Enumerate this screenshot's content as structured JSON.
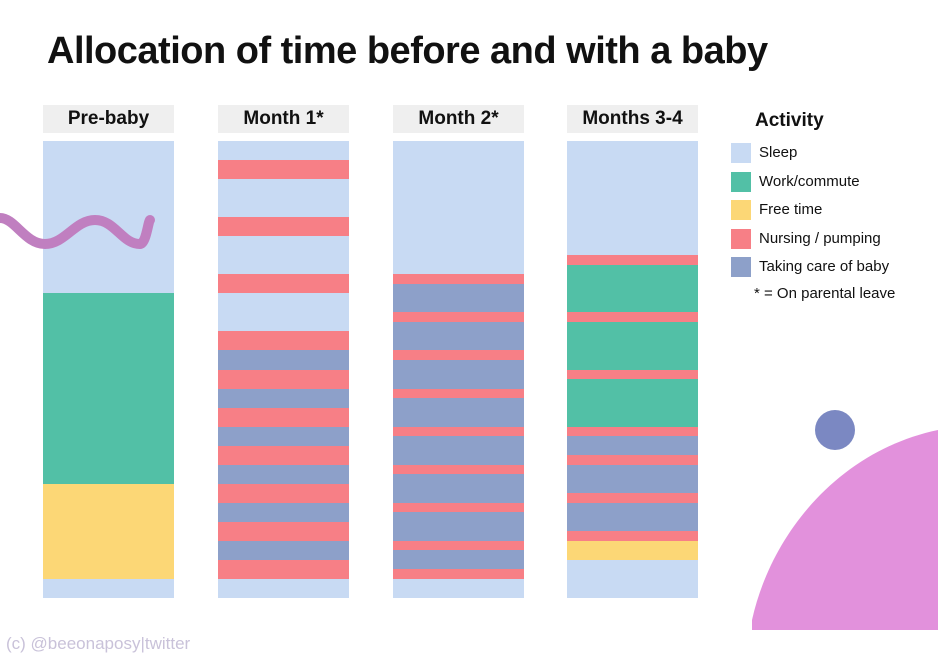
{
  "title": "Allocation of time before and with a baby",
  "credit": "(c) @beeonaposy|twitter",
  "colors": {
    "sleep": "#c8daf3",
    "work": "#52c0a6",
    "free": "#fcd776",
    "nursing": "#f77f86",
    "baby": "#8da0c9",
    "decor_wave": "#c07fc0",
    "decor_dot": "#7b88c2",
    "decor_blob": "#e291dc"
  },
  "chart_data": {
    "type": "bar",
    "stacked": true,
    "unit": "hours",
    "range": [
      0,
      24
    ],
    "categories": [
      "Pre-baby",
      "Month 1*",
      "Month 2*",
      "Months 3-4"
    ],
    "legend": {
      "title": "Activity",
      "placement": "right",
      "items": [
        {
          "key": "sleep",
          "label": "Sleep"
        },
        {
          "key": "work",
          "label": "Work/commute"
        },
        {
          "key": "free",
          "label": "Free time"
        },
        {
          "key": "nursing",
          "label": "Nursing / pumping"
        },
        {
          "key": "baby",
          "label": "Taking care of baby"
        }
      ],
      "note": "* = On parental leave"
    },
    "columns": [
      {
        "name": "Pre-baby",
        "segments": [
          {
            "activity": "sleep",
            "hours": 8
          },
          {
            "activity": "work",
            "hours": 10
          },
          {
            "activity": "free",
            "hours": 5
          },
          {
            "activity": "sleep",
            "hours": 1
          }
        ]
      },
      {
        "name": "Month 1*",
        "segments": [
          {
            "activity": "sleep",
            "hours": 1
          },
          {
            "activity": "nursing",
            "hours": 1
          },
          {
            "activity": "sleep",
            "hours": 2
          },
          {
            "activity": "nursing",
            "hours": 1
          },
          {
            "activity": "sleep",
            "hours": 2
          },
          {
            "activity": "nursing",
            "hours": 1
          },
          {
            "activity": "sleep",
            "hours": 2
          },
          {
            "activity": "nursing",
            "hours": 1
          },
          {
            "activity": "baby",
            "hours": 1
          },
          {
            "activity": "nursing",
            "hours": 1
          },
          {
            "activity": "baby",
            "hours": 1
          },
          {
            "activity": "nursing",
            "hours": 1
          },
          {
            "activity": "baby",
            "hours": 1
          },
          {
            "activity": "nursing",
            "hours": 1
          },
          {
            "activity": "baby",
            "hours": 1
          },
          {
            "activity": "nursing",
            "hours": 1
          },
          {
            "activity": "baby",
            "hours": 1
          },
          {
            "activity": "nursing",
            "hours": 1
          },
          {
            "activity": "baby",
            "hours": 1
          },
          {
            "activity": "nursing",
            "hours": 1
          },
          {
            "activity": "sleep",
            "hours": 1
          }
        ]
      },
      {
        "name": "Month 2*",
        "segments": [
          {
            "activity": "sleep",
            "hours": 7
          },
          {
            "activity": "nursing",
            "hours": 0.5
          },
          {
            "activity": "baby",
            "hours": 1.5
          },
          {
            "activity": "nursing",
            "hours": 0.5
          },
          {
            "activity": "baby",
            "hours": 1.5
          },
          {
            "activity": "nursing",
            "hours": 0.5
          },
          {
            "activity": "baby",
            "hours": 1.5
          },
          {
            "activity": "nursing",
            "hours": 0.5
          },
          {
            "activity": "baby",
            "hours": 1.5
          },
          {
            "activity": "nursing",
            "hours": 0.5
          },
          {
            "activity": "baby",
            "hours": 1.5
          },
          {
            "activity": "nursing",
            "hours": 0.5
          },
          {
            "activity": "baby",
            "hours": 1.5
          },
          {
            "activity": "nursing",
            "hours": 0.5
          },
          {
            "activity": "baby",
            "hours": 1.5
          },
          {
            "activity": "nursing",
            "hours": 0.5
          },
          {
            "activity": "baby",
            "hours": 1
          },
          {
            "activity": "nursing",
            "hours": 0.5
          },
          {
            "activity": "sleep",
            "hours": 1
          }
        ]
      },
      {
        "name": "Months 3-4",
        "segments": [
          {
            "activity": "sleep",
            "hours": 6
          },
          {
            "activity": "nursing",
            "hours": 0.5
          },
          {
            "activity": "work",
            "hours": 2.5
          },
          {
            "activity": "nursing",
            "hours": 0.5
          },
          {
            "activity": "work",
            "hours": 2.5
          },
          {
            "activity": "nursing",
            "hours": 0.5
          },
          {
            "activity": "work",
            "hours": 2.5
          },
          {
            "activity": "nursing",
            "hours": 0.5
          },
          {
            "activity": "baby",
            "hours": 1
          },
          {
            "activity": "nursing",
            "hours": 0.5
          },
          {
            "activity": "baby",
            "hours": 1.5
          },
          {
            "activity": "nursing",
            "hours": 0.5
          },
          {
            "activity": "baby",
            "hours": 1.5
          },
          {
            "activity": "nursing",
            "hours": 0.5
          },
          {
            "activity": "free",
            "hours": 1
          },
          {
            "activity": "sleep",
            "hours": 2
          }
        ]
      }
    ]
  }
}
